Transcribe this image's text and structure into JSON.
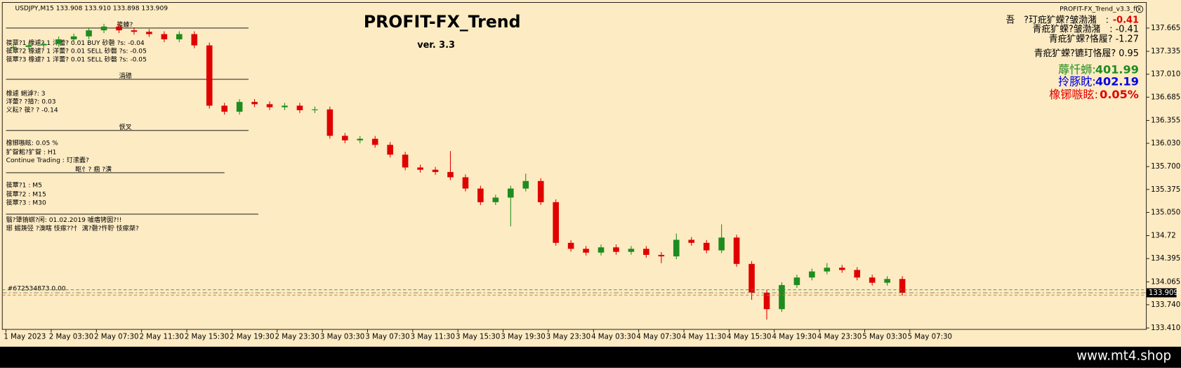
{
  "window": {
    "header": "USDJPY,M15  133.908 133.910 133.898 133.909",
    "expert": "PROFIT-FX_Trend_v3.3_fix",
    "footer": "www.mt4.shop"
  },
  "indicator": {
    "title": "PROFIT-FX_Trend",
    "version": "ver. 3.3",
    "stats": [
      {
        "label": "吾　?玎疪犷蝾?皱渤潴　:",
        "value": "-0.41"
      },
      {
        "label": "青疪犷蝾?皱渤潴　:  -0.41"
      },
      {
        "label": "青疪犷蝾?恪履?  -1.27"
      },
      {
        "label": "青疪犷蝾?镳玎恪履?  0.95"
      }
    ],
    "balance": [
      {
        "label": "蓐忏蛳:",
        "value": "401.99"
      },
      {
        "label": "拎豚眈:",
        "value": "402.19"
      },
      {
        "label": "橡铘嗾眩:",
        "value": "0.05%"
      }
    ]
  },
  "panel": {
    "section1": "篌螓?",
    "orders": [
      "篌覃?1 橡遽?   1   洋蕾?  0.01 BUY    砂磬   ?s:  -0.04",
      "篌覃?2 橡遽?   1   洋蕾?  0.01 SELL   砂磬   ?s:  -0.05",
      "篌覃?3 橡遽?   1   洋蕾?  0.01 SELL   砂磬   ?s:  -0.05"
    ],
    "section2": "涓礤",
    "summary": [
      "橡遽      蜊滹?:   3",
      "洋蕾?   ?揞?:   0.03",
      "义耘?      篌?   ?  -0.14"
    ],
    "section3": "恹叉",
    "settings": [
      "橡铘嗾眩:   0.05 %",
      "犷眢耜?犷眢    :   H1",
      "Continue Trading :   玎潆蠹?"
    ],
    "section4": "眍忄? 痼 ?潢",
    "frames": [
      "篌覃?1 :   M5",
      "篌覃?2 :   M15",
      "篌覃?3 :   M30"
    ],
    "notes": [
      "翳?犟铕蜞?闲: 01.02.2019 噱痦铐囡?!!",
      "琊     蜴篪弪 ?溴瞎 忮瘃??忄 漓?磬?忤聍 忮瘃桀?"
    ],
    "tags": "#672534873  0.00"
  },
  "chart_data": {
    "type": "candlestick",
    "up_color": "#1e8c1e",
    "down_color": "#e00000",
    "open": [
      137.38,
      137.398,
      137.419,
      137.44,
      137.505,
      137.547,
      137.633,
      137.686,
      137.633,
      137.612,
      137.579,
      137.505,
      137.579,
      137.419,
      136.564,
      136.478,
      136.617,
      136.585,
      136.542,
      136.564,
      136.5,
      136.511,
      136.136,
      136.072,
      136.094,
      136.008,
      135.869,
      135.687,
      135.655,
      135.623,
      135.548,
      135.388,
      135.195,
      135.26,
      135.388,
      135.495,
      135.195,
      134.618,
      134.533,
      134.479,
      134.554,
      134.49,
      134.533,
      134.447,
      134.426,
      134.661,
      134.618,
      134.511,
      134.693,
      134.319,
      133.913,
      133.677,
      134.019,
      134.126,
      134.212,
      134.265,
      134.233,
      134.126,
      134.052,
      134.105
    ],
    "high": [
      137.438,
      137.459,
      137.48,
      137.545,
      137.587,
      137.673,
      137.726,
      137.726,
      137.673,
      137.652,
      137.619,
      137.619,
      137.619,
      137.459,
      136.604,
      136.657,
      136.657,
      136.625,
      136.604,
      136.604,
      136.551,
      136.551,
      136.176,
      136.134,
      136.134,
      136.048,
      135.909,
      135.727,
      135.695,
      135.92,
      135.588,
      135.428,
      135.3,
      135.428,
      135.6,
      135.535,
      135.235,
      134.658,
      134.573,
      134.594,
      134.594,
      134.573,
      134.573,
      134.487,
      134.75,
      134.701,
      134.658,
      134.88,
      134.733,
      134.359,
      133.953,
      134.059,
      134.166,
      134.252,
      134.33,
      134.305,
      134.273,
      134.166,
      134.145,
      134.145
    ],
    "low": [
      137.34,
      137.358,
      137.379,
      137.4,
      137.465,
      137.507,
      137.593,
      137.593,
      137.572,
      137.539,
      137.465,
      137.465,
      137.379,
      136.524,
      136.438,
      136.438,
      136.545,
      136.502,
      136.502,
      136.46,
      136.46,
      136.096,
      136.032,
      136.032,
      135.968,
      135.829,
      135.647,
      135.615,
      135.583,
      135.508,
      135.348,
      135.155,
      135.155,
      134.853,
      135.348,
      135.155,
      134.578,
      134.493,
      134.439,
      134.439,
      134.45,
      134.45,
      134.407,
      134.33,
      134.386,
      134.578,
      134.471,
      134.471,
      134.279,
      133.81,
      133.53,
      133.637,
      133.979,
      134.086,
      134.172,
      134.193,
      134.086,
      134.012,
      134.012,
      133.869
    ],
    "close": [
      137.398,
      137.419,
      137.44,
      137.505,
      137.547,
      137.633,
      137.686,
      137.633,
      137.612,
      137.579,
      137.505,
      137.579,
      137.419,
      136.564,
      136.478,
      136.617,
      136.585,
      136.542,
      136.564,
      136.5,
      136.511,
      136.136,
      136.072,
      136.094,
      136.008,
      135.869,
      135.687,
      135.655,
      135.623,
      135.548,
      135.388,
      135.195,
      135.26,
      135.388,
      135.495,
      135.195,
      134.618,
      134.533,
      134.479,
      134.554,
      134.49,
      134.533,
      134.447,
      134.426,
      134.661,
      134.618,
      134.511,
      134.693,
      134.319,
      133.913,
      133.677,
      134.019,
      134.126,
      134.212,
      134.265,
      134.233,
      134.126,
      134.052,
      134.105,
      133.909
    ],
    "xlim": [
      -0.5,
      75.2
    ],
    "xticks": [
      {
        "value": -0.5,
        "label": "1 May 2023"
      },
      {
        "value": 2.5,
        "label": "2 May 03:30"
      },
      {
        "value": 5.5,
        "label": "2 May 07:30"
      },
      {
        "value": 8.5,
        "label": "2 May 11:30"
      },
      {
        "value": 11.5,
        "label": "2 May 15:30"
      },
      {
        "value": 14.5,
        "label": "2 May 19:30"
      },
      {
        "value": 17.5,
        "label": "2 May 23:30"
      },
      {
        "value": 20.5,
        "label": "3 May 03:30"
      },
      {
        "value": 23.5,
        "label": "3 May 07:30"
      },
      {
        "value": 26.5,
        "label": "3 May 11:30"
      },
      {
        "value": 29.5,
        "label": "3 May 15:30"
      },
      {
        "value": 32.5,
        "label": "3 May 19:30"
      },
      {
        "value": 35.5,
        "label": "3 May 23:30"
      },
      {
        "value": 38.5,
        "label": "4 May 03:30"
      },
      {
        "value": 41.5,
        "label": "4 May 07:30"
      },
      {
        "value": 44.5,
        "label": "4 May 11:30"
      },
      {
        "value": 47.5,
        "label": "4 May 15:30"
      },
      {
        "value": 50.5,
        "label": "4 May 19:30"
      },
      {
        "value": 53.5,
        "label": "4 May 23:30"
      },
      {
        "value": 56.5,
        "label": "5 May 03:30"
      },
      {
        "value": 59.5,
        "label": "5 May 07:30"
      }
    ],
    "ylim": [
      133.39,
      137.975
    ],
    "yticks": [
      137.665,
      137.335,
      {
        "value": 137.01,
        "label": "137.010"
      },
      136.685,
      136.355,
      {
        "value": 136.03,
        "label": "136.030"
      },
      {
        "value": 135.7,
        "label": "135.700"
      },
      135.375,
      {
        "value": 135.05,
        "label": "135.050"
      },
      134.72,
      134.395,
      134.065,
      {
        "value": 133.74,
        "label": "133.740"
      },
      {
        "value": 133.41,
        "label": "133.410"
      }
    ],
    "price_line": 133.909
  }
}
